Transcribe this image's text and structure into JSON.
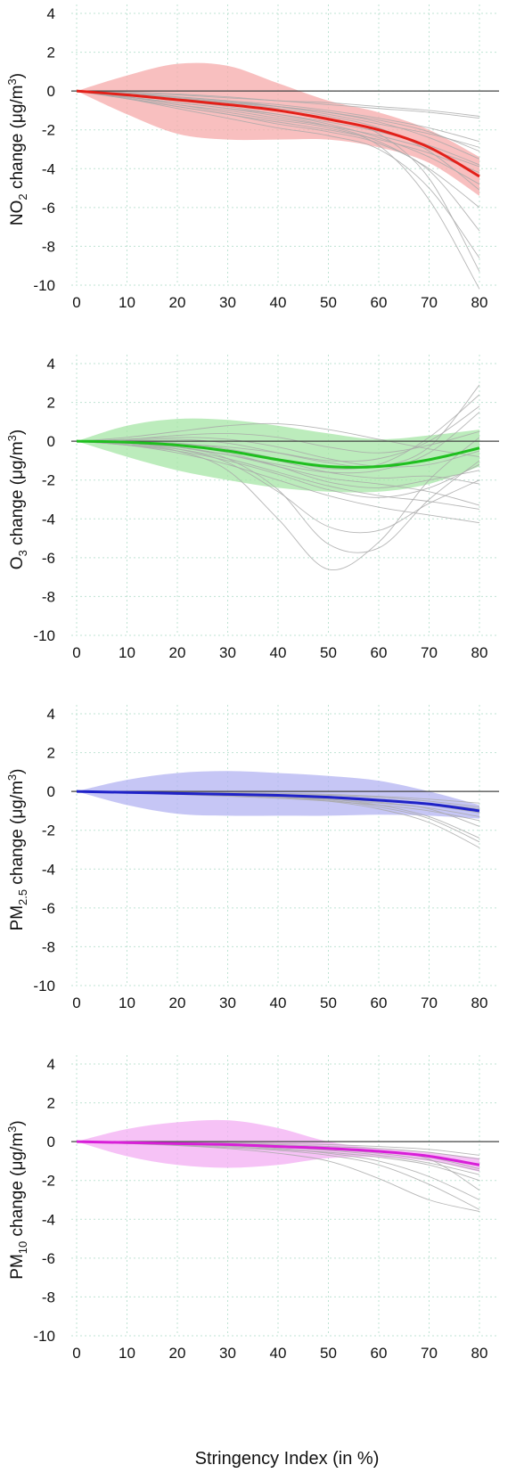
{
  "chart_data": [
    {
      "type": "line",
      "panel": "NO2",
      "ylabel_main": "NO",
      "ylabel_sub": "2",
      "ylabel_rest": " change (μg/m",
      "ylabel_sup": "3",
      "ylabel_close": ")",
      "xlabel": "",
      "xlim": [
        0,
        80
      ],
      "ylim": [
        -10,
        4
      ],
      "xticks": [
        0,
        10,
        20,
        30,
        40,
        50,
        60,
        70,
        80
      ],
      "yticks": [
        4,
        2,
        0,
        -2,
        -4,
        -6,
        -8,
        -10
      ],
      "grid": true,
      "color": "#e32019",
      "band_color": "#f6aaaa",
      "x": [
        0,
        10,
        20,
        30,
        40,
        50,
        60,
        70,
        80
      ],
      "series": [
        {
          "type": "mean",
          "values": [
            0,
            -0.2,
            -0.45,
            -0.7,
            -1.0,
            -1.45,
            -2.0,
            -2.9,
            -4.4
          ]
        },
        {
          "type": "ci_upper",
          "values": [
            0,
            0.8,
            1.4,
            1.3,
            0.4,
            -0.5,
            -1.1,
            -2.0,
            -3.4
          ]
        },
        {
          "type": "ci_lower",
          "values": [
            0,
            -1.2,
            -2.2,
            -2.5,
            -2.5,
            -2.5,
            -2.9,
            -3.7,
            -5.4
          ]
        }
      ],
      "spaghetti": [
        [
          0,
          -0.1,
          -0.2,
          -0.35,
          -0.5,
          -0.7,
          -0.9,
          -1.1,
          -1.4
        ],
        [
          0,
          -0.2,
          -0.4,
          -0.6,
          -0.8,
          -1.1,
          -1.6,
          -2.4,
          -3.5
        ],
        [
          0,
          -0.3,
          -0.6,
          -0.9,
          -1.3,
          -1.8,
          -2.6,
          -4.0,
          -6.0
        ],
        [
          0,
          -0.4,
          -0.9,
          -1.4,
          -1.9,
          -2.3,
          -3.0,
          -5.0,
          -8.6
        ],
        [
          0,
          -0.3,
          -0.7,
          -1.1,
          -1.5,
          -1.9,
          -2.8,
          -5.6,
          -10.2
        ],
        [
          0,
          -0.15,
          -0.3,
          -0.5,
          -0.7,
          -1.0,
          -1.4,
          -1.9,
          -2.6
        ],
        [
          0,
          -0.25,
          -0.5,
          -0.8,
          -1.2,
          -1.7,
          -2.4,
          -3.4,
          -4.8
        ],
        [
          0,
          -0.35,
          -0.8,
          -1.2,
          -1.6,
          -2.0,
          -2.5,
          -3.2,
          -4.2
        ],
        [
          0,
          -0.05,
          -0.15,
          -0.3,
          -0.5,
          -0.6,
          -0.8,
          -1.0,
          -1.3
        ],
        [
          0,
          -0.2,
          -0.45,
          -0.7,
          -1.0,
          -1.4,
          -2.2,
          -4.5,
          -9.3
        ],
        [
          0,
          -0.3,
          -0.6,
          -0.9,
          -1.2,
          -1.6,
          -2.1,
          -2.8,
          -3.8
        ],
        [
          0,
          -0.1,
          -0.3,
          -0.5,
          -0.8,
          -1.2,
          -1.7,
          -2.2,
          -2.9
        ],
        [
          0,
          -0.4,
          -0.8,
          -1.2,
          -1.7,
          -2.1,
          -2.7,
          -4.1,
          -7.2
        ],
        [
          0,
          -0.2,
          -0.4,
          -0.6,
          -0.9,
          -1.3,
          -1.9,
          -3.1,
          -5.1
        ],
        [
          0,
          -0.15,
          -0.35,
          -0.55,
          -0.8,
          -1.1,
          -1.5,
          -2.1,
          -3.1
        ],
        [
          0,
          -0.3,
          -0.7,
          -1.0,
          -1.4,
          -1.8,
          -2.3,
          -3.0,
          -3.9
        ]
      ]
    },
    {
      "type": "line",
      "panel": "O3",
      "ylabel_main": "O",
      "ylabel_sub": "3",
      "ylabel_rest": " change (μg/m",
      "ylabel_sup": "3",
      "ylabel_close": ")",
      "xlabel": "",
      "xlim": [
        0,
        80
      ],
      "ylim": [
        -10,
        4
      ],
      "xticks": [
        0,
        10,
        20,
        30,
        40,
        50,
        60,
        70,
        80
      ],
      "yticks": [
        4,
        2,
        0,
        -2,
        -4,
        -6,
        -8,
        -10
      ],
      "grid": true,
      "color": "#1fbf1f",
      "band_color": "#a6e6a6",
      "x": [
        0,
        10,
        20,
        30,
        40,
        50,
        60,
        70,
        80
      ],
      "series": [
        {
          "type": "mean",
          "values": [
            0,
            -0.05,
            -0.2,
            -0.5,
            -0.95,
            -1.3,
            -1.3,
            -0.95,
            -0.35
          ]
        },
        {
          "type": "ci_upper",
          "values": [
            0,
            0.8,
            1.15,
            1.1,
            0.8,
            0.4,
            0.1,
            0.3,
            0.6
          ]
        },
        {
          "type": "ci_lower",
          "values": [
            0,
            -0.8,
            -1.5,
            -2.0,
            -2.4,
            -2.6,
            -2.6,
            -2.2,
            -1.3
          ]
        }
      ],
      "spaghetti": [
        [
          0,
          -0.1,
          -0.3,
          -0.9,
          -2.5,
          -5.3,
          -5.5,
          -3.0,
          -1.0
        ],
        [
          0,
          -0.2,
          -0.5,
          -1.5,
          -4.0,
          -6.6,
          -5.2,
          -2.0,
          0.2
        ],
        [
          0,
          0.1,
          0.3,
          0.4,
          0.2,
          -0.3,
          -0.6,
          -0.2,
          0.5
        ],
        [
          0,
          -0.1,
          -0.3,
          -0.7,
          -1.2,
          -1.6,
          -1.5,
          -0.6,
          1.5
        ],
        [
          0,
          0.05,
          0.1,
          -0.1,
          -0.6,
          -1.1,
          -1.3,
          -0.3,
          2.9
        ],
        [
          0,
          -0.15,
          -0.4,
          -0.9,
          -1.6,
          -2.3,
          -2.8,
          -3.1,
          -3.5
        ],
        [
          0,
          -0.2,
          -0.6,
          -1.2,
          -2.0,
          -2.8,
          -3.4,
          -3.8,
          -4.2
        ],
        [
          0,
          -0.1,
          -0.2,
          -0.6,
          -1.3,
          -2.1,
          -2.4,
          -2.0,
          -1.5
        ],
        [
          0,
          0.2,
          0.5,
          0.8,
          0.9,
          0.6,
          0.1,
          -0.4,
          -0.8
        ],
        [
          0,
          -0.05,
          -0.2,
          -0.5,
          -1.0,
          -1.6,
          -1.9,
          -1.8,
          -2.2
        ],
        [
          0,
          -0.1,
          -0.4,
          -1.1,
          -2.6,
          -4.4,
          -4.6,
          -3.2,
          -2.0
        ],
        [
          0,
          0.0,
          -0.1,
          -0.4,
          -0.9,
          -1.4,
          -1.2,
          0.2,
          2.4
        ],
        [
          0,
          -0.1,
          -0.3,
          -0.7,
          -1.3,
          -1.9,
          -2.2,
          -2.6,
          -3.3
        ],
        [
          0,
          0.1,
          0.2,
          0.1,
          -0.3,
          -0.9,
          -1.3,
          -1.2,
          -0.5
        ],
        [
          0,
          -0.2,
          -0.5,
          -1.0,
          -1.7,
          -2.5,
          -2.9,
          -2.4,
          -1.2
        ],
        [
          0,
          -0.05,
          -0.15,
          -0.3,
          -0.6,
          -1.0,
          -0.9,
          0.0,
          1.8
        ]
      ]
    },
    {
      "type": "line",
      "panel": "PM2.5",
      "ylabel_main": "PM",
      "ylabel_sub": "2.5",
      "ylabel_rest": " change (μg/m",
      "ylabel_sup": "3",
      "ylabel_close": ")",
      "xlabel": "",
      "xlim": [
        0,
        80
      ],
      "ylim": [
        -10,
        4
      ],
      "xticks": [
        0,
        10,
        20,
        30,
        40,
        50,
        60,
        70,
        80
      ],
      "yticks": [
        4,
        2,
        0,
        -2,
        -4,
        -6,
        -8,
        -10
      ],
      "grid": true,
      "color": "#1f22c8",
      "band_color": "#b3b3f2",
      "x": [
        0,
        10,
        20,
        30,
        40,
        50,
        60,
        70,
        80
      ],
      "series": [
        {
          "type": "mean",
          "values": [
            0,
            -0.05,
            -0.1,
            -0.15,
            -0.2,
            -0.3,
            -0.45,
            -0.65,
            -1.0
          ]
        },
        {
          "type": "ci_upper",
          "values": [
            0,
            0.6,
            0.95,
            1.05,
            0.95,
            0.8,
            0.55,
            0.0,
            -0.7
          ]
        },
        {
          "type": "ci_lower",
          "values": [
            0,
            -0.7,
            -1.15,
            -1.25,
            -1.25,
            -1.25,
            -1.2,
            -1.25,
            -1.4
          ]
        }
      ],
      "spaghetti": [
        [
          0,
          -0.05,
          -0.1,
          -0.15,
          -0.25,
          -0.4,
          -0.7,
          -1.3,
          -2.4
        ],
        [
          0,
          -0.05,
          -0.1,
          -0.2,
          -0.3,
          -0.5,
          -0.9,
          -1.6,
          -2.9
        ],
        [
          0,
          0.0,
          -0.05,
          -0.1,
          -0.15,
          -0.25,
          -0.4,
          -0.6,
          -0.9
        ],
        [
          0,
          -0.05,
          -0.15,
          -0.25,
          -0.35,
          -0.5,
          -0.7,
          -1.0,
          -1.5
        ],
        [
          0,
          -0.03,
          -0.08,
          -0.12,
          -0.2,
          -0.3,
          -0.45,
          -0.7,
          -1.1
        ],
        [
          0,
          -0.05,
          -0.1,
          -0.2,
          -0.3,
          -0.45,
          -0.8,
          -1.4,
          -2.6
        ],
        [
          0,
          0.0,
          0.0,
          -0.05,
          -0.1,
          -0.15,
          -0.25,
          -0.4,
          -0.6
        ],
        [
          0,
          -0.04,
          -0.1,
          -0.16,
          -0.24,
          -0.35,
          -0.55,
          -0.9,
          -1.8
        ],
        [
          0,
          -0.06,
          -0.12,
          -0.2,
          -0.3,
          -0.4,
          -0.6,
          -0.85,
          -1.3
        ],
        [
          0,
          -0.02,
          -0.05,
          -0.1,
          -0.15,
          -0.2,
          -0.3,
          -0.5,
          -0.8
        ]
      ]
    },
    {
      "type": "line",
      "panel": "PM10",
      "ylabel_main": "PM",
      "ylabel_sub": "10",
      "ylabel_rest": " change (μg/m",
      "ylabel_sup": "3",
      "ylabel_close": ")",
      "xlabel": "Stringency Index (in %)",
      "xlim": [
        0,
        80
      ],
      "ylim": [
        -10,
        4
      ],
      "xticks": [
        0,
        10,
        20,
        30,
        40,
        50,
        60,
        70,
        80
      ],
      "yticks": [
        4,
        2,
        0,
        -2,
        -4,
        -6,
        -8,
        -10
      ],
      "grid": true,
      "color": "#d81fd8",
      "band_color": "#f3aef3",
      "x": [
        0,
        10,
        20,
        30,
        40,
        50,
        60,
        70,
        80
      ],
      "series": [
        {
          "type": "mean",
          "values": [
            0,
            -0.05,
            -0.1,
            -0.15,
            -0.25,
            -0.35,
            -0.5,
            -0.75,
            -1.2
          ]
        },
        {
          "type": "ci_upper",
          "values": [
            0,
            0.65,
            1.0,
            1.1,
            0.7,
            0.0,
            -0.35,
            -0.55,
            -0.85
          ]
        },
        {
          "type": "ci_lower",
          "values": [
            0,
            -0.75,
            -1.2,
            -1.35,
            -1.2,
            -0.85,
            -0.8,
            -1.0,
            -1.55
          ]
        }
      ],
      "spaghetti": [
        [
          0,
          -0.1,
          -0.2,
          -0.35,
          -0.6,
          -1.0,
          -1.9,
          -3.0,
          -3.6
        ],
        [
          0,
          -0.05,
          -0.1,
          -0.2,
          -0.35,
          -0.6,
          -1.0,
          -1.8,
          -3.0
        ],
        [
          0,
          0.0,
          -0.05,
          -0.1,
          -0.2,
          -0.3,
          -0.5,
          -0.8,
          -1.4
        ],
        [
          0,
          -0.05,
          -0.15,
          -0.25,
          -0.4,
          -0.55,
          -0.8,
          -1.2,
          -2.0
        ],
        [
          0,
          -0.02,
          -0.05,
          -0.1,
          -0.15,
          -0.25,
          -0.35,
          -0.55,
          -0.9
        ],
        [
          0,
          -0.06,
          -0.12,
          -0.2,
          -0.3,
          -0.45,
          -0.7,
          -1.1,
          -1.7
        ],
        [
          0,
          -0.03,
          -0.08,
          -0.14,
          -0.22,
          -0.32,
          -0.5,
          -0.9,
          -2.5
        ],
        [
          0,
          -0.04,
          -0.1,
          -0.18,
          -0.28,
          -0.4,
          -0.6,
          -0.95,
          -1.5
        ],
        [
          0,
          0.0,
          0.0,
          -0.05,
          -0.1,
          -0.15,
          -0.25,
          -0.4,
          -0.7
        ],
        [
          0,
          -0.08,
          -0.18,
          -0.3,
          -0.45,
          -0.7,
          -1.2,
          -2.2,
          -3.5
        ]
      ]
    }
  ]
}
